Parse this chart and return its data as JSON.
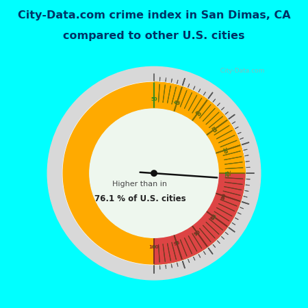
{
  "title_line1": "City-Data.com crime index in San Dimas, CA",
  "title_line2": "compared to other U.S. cities",
  "title_color": "#003366",
  "title_bg": "#00FFFF",
  "bg_color_top": "#E8F5EE",
  "bg_color": "#D8EDE0",
  "watermark": "  City-Data.com",
  "value": 76.1,
  "text_line1": "Higher than in",
  "text_line2": "76.1 % of U.S. cities",
  "green_color": "#44CC44",
  "orange_color": "#FFAA00",
  "red_color": "#DD4444",
  "outer_ring_color": "#CCCCCC",
  "inner_face_color": "#EEF7EE",
  "needle_color": "#111111",
  "tick_color_green": "#228822",
  "tick_color_orange": "#886600",
  "tick_color_red": "#882222",
  "label_color_green": "#228822",
  "label_color_orange": "#886600",
  "label_color_red": "#882222"
}
